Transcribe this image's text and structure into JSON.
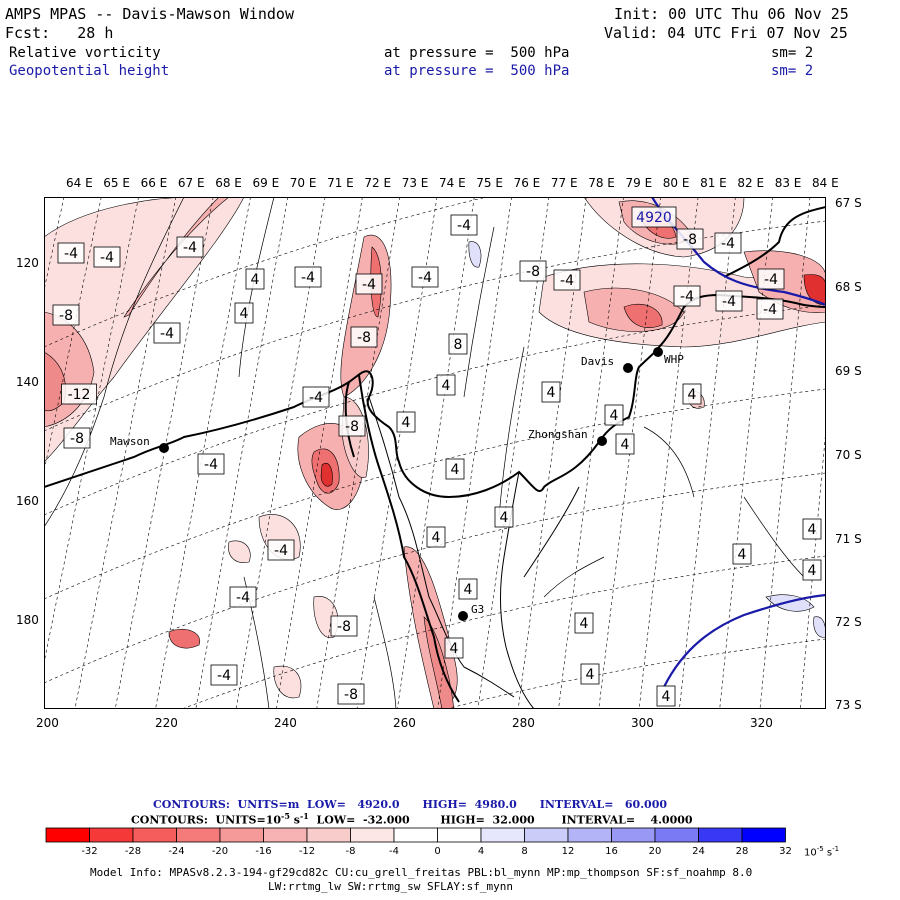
{
  "header": {
    "title": "AMPS MPAS -- Davis-Mawson Window",
    "forecast": "Fcst:   28 h",
    "init": "Init: 00 UTC Thu 06 Nov 25",
    "valid": "Valid: 04 UTC Fri 07 Nov 25",
    "field1": {
      "name": "Relative vorticity",
      "level": "at pressure =  500 hPa",
      "smooth": "sm= 2"
    },
    "field2": {
      "name": "Geopotential height",
      "level": "at pressure =  500 hPa",
      "smooth": "sm= 2"
    }
  },
  "axes": {
    "top_labels": [
      "64 E",
      "65 E",
      "66 E",
      "67 E",
      "68 E",
      "69 E",
      "70 E",
      "71 E",
      "72 E",
      "73 E",
      "74 E",
      "75 E",
      "76 E",
      "77 E",
      "78 E",
      "79 E",
      "80 E",
      "81 E",
      "82 E",
      "83 E",
      "84 E"
    ],
    "right_labels": [
      "67 S",
      "68 S",
      "69 S",
      "70 S",
      "71 S",
      "72 S",
      "73 S"
    ],
    "left_ticks": [
      "120",
      "140",
      "160",
      "180"
    ],
    "bottom_ticks": [
      "200",
      "220",
      "240",
      "260",
      "280",
      "300",
      "320"
    ]
  },
  "stations": [
    {
      "name": "Mawson"
    },
    {
      "name": "Davis"
    },
    {
      "name": "WHP"
    },
    {
      "name": "Zhongshan"
    },
    {
      "name": "G3"
    }
  ],
  "contour_labels": {
    "height": [
      "4920"
    ],
    "vorticity": [
      "-4",
      "-4",
      "-4",
      "-8",
      "-12",
      "-8",
      "-4",
      "-4",
      "-4",
      "-4",
      "-8",
      "-8",
      "-4",
      "-4",
      "-4",
      "-8",
      "-4",
      "-8",
      "-8",
      "-4",
      "-8",
      "-4",
      "-4",
      "-4",
      "-4",
      "-4",
      "-4",
      "-4",
      "4",
      "4",
      "4",
      "4",
      "4",
      "4",
      "8",
      "4",
      "4",
      "4",
      "4",
      "4",
      "4",
      "4",
      "4",
      "4",
      "4",
      "4",
      "4",
      "4"
    ]
  },
  "info": {
    "line1_label": "CONTOURS:  UNITS=m  LOW=   4920.0      HIGH=  4980.0      INTERVAL=   60.000",
    "line2_label": "CONTOURS:  UNITS=10",
    "line2_exp": "-5",
    "line2_unit": " s",
    "line2_exp2": "-1",
    "line2_rest": "  LOW=  -32.000        HIGH=  32.000       INTERVAL=    4.0000",
    "colorbar_labels": [
      "-32",
      "-28",
      "-24",
      "-20",
      "-16",
      "-12",
      "-8",
      "-4",
      "0",
      "4",
      "8",
      "12",
      "16",
      "20",
      "24",
      "28",
      "32"
    ],
    "colorbar_unit": "10",
    "colorbar_unit_exp": "-5",
    "colorbar_unit_s": " s",
    "colorbar_unit_exp2": "-1",
    "colorbar_colors": [
      "#ff0000",
      "#f53838",
      "#f55c5c",
      "#f57a7a",
      "#f59999",
      "#f7b3b3",
      "#f9cccc",
      "#fce6e6",
      "#ffffff",
      "#ffffff",
      "#e6e6fc",
      "#ccccf9",
      "#b3b3f7",
      "#9999f5",
      "#7a7af5",
      "#3838f5",
      "#0000ff"
    ],
    "model_line1": "Model Info: MPASv8.2.3-194-gf29cd82c CU:cu_grell_freitas PBL:bl_mynn MP:mp_thompson SF:sf_noahmp 8.0",
    "model_line2": "LW:rrtmg_lw SW:rrtmg_sw SFLAY:sf_mynn"
  },
  "colors": {
    "coast": "#000000",
    "height_contour": "#1a1aa8",
    "neg_light": "#fce0e0",
    "neg_mid": "#f7b0b0",
    "neg_strong": "#ef7070",
    "neg_core": "#e03030",
    "pos_light": "#e0e0fa"
  }
}
